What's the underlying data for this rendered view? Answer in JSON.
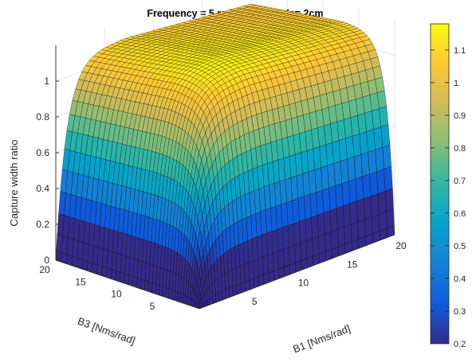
{
  "chart_data": {
    "type": "surface",
    "title": "Frequency = 5 rad/s, Amplitude= 2cm",
    "xlabel": "B1 [Nms/rad]",
    "ylabel": "B3 [Nms/rad]",
    "zlabel": "Capture width ratio",
    "xlim": [
      0,
      20
    ],
    "ylim": [
      0,
      20
    ],
    "zlim": [
      0,
      1.2
    ],
    "xticks": [
      "5",
      "10",
      "15",
      "20"
    ],
    "yticks": [
      "5",
      "10",
      "15",
      "20"
    ],
    "zticks": [
      "0",
      "0.2",
      "0.4",
      "0.6",
      "0.8",
      "1"
    ],
    "colorbar": {
      "range": [
        0.2,
        1.18
      ],
      "ticks": [
        "0.2",
        "0.3",
        "0.4",
        "0.5",
        "0.6",
        "0.7",
        "0.8",
        "0.9",
        "1",
        "1.1"
      ]
    },
    "colormap": "parula",
    "contour_projection": true,
    "grid": true,
    "peak_value": 1.17,
    "min_value": 0
  }
}
